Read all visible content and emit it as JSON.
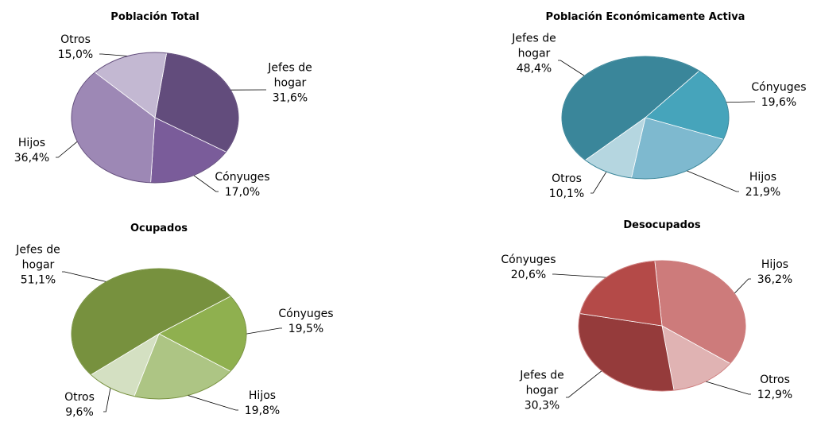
{
  "chart_data": [
    {
      "type": "pie",
      "title": "Población Total",
      "categories": [
        "Jefes de hogar",
        "Cónyuges",
        "Hijos",
        "Otros"
      ],
      "values": [
        31.6,
        17.0,
        36.4,
        15.0
      ],
      "value_labels": [
        "31,6%",
        "17,0%",
        "36,4%",
        "15,0%"
      ],
      "colors": [
        "#624c7c",
        "#7a5c9a",
        "#9d88b5",
        "#c3b8d2"
      ]
    },
    {
      "type": "pie",
      "title": "Población Económicamente Activa",
      "categories": [
        "Jefes de hogar",
        "Cónyuges",
        "Hijos",
        "Otros"
      ],
      "values": [
        48.4,
        19.6,
        21.9,
        10.1
      ],
      "value_labels": [
        "48,4%",
        "19,6%",
        "21,9%",
        "10,1%"
      ],
      "colors": [
        "#3a869a",
        "#46a4bb",
        "#7eb9cf",
        "#b5d6e0"
      ]
    },
    {
      "type": "pie",
      "title": "Ocupados",
      "categories": [
        "Jefes de hogar",
        "Cónyuges",
        "Hijos",
        "Otros"
      ],
      "values": [
        51.1,
        19.5,
        19.8,
        9.6
      ],
      "value_labels": [
        "51,1%",
        "19,5%",
        "19,8%",
        "9,6%"
      ],
      "colors": [
        "#77913e",
        "#8fb04f",
        "#adc584",
        "#d4e0c2"
      ]
    },
    {
      "type": "pie",
      "title": "Desocupados",
      "categories": [
        "Hijos",
        "Otros",
        "Jefes de hogar",
        "Cónyuges"
      ],
      "values": [
        36.2,
        12.9,
        30.3,
        20.6
      ],
      "value_labels": [
        "36,2%",
        "12,9%",
        "30,3%",
        "20,6%"
      ],
      "colors": [
        "#cd7b7b",
        "#e0b3b3",
        "#953b3b",
        "#b44a48"
      ]
    }
  ]
}
